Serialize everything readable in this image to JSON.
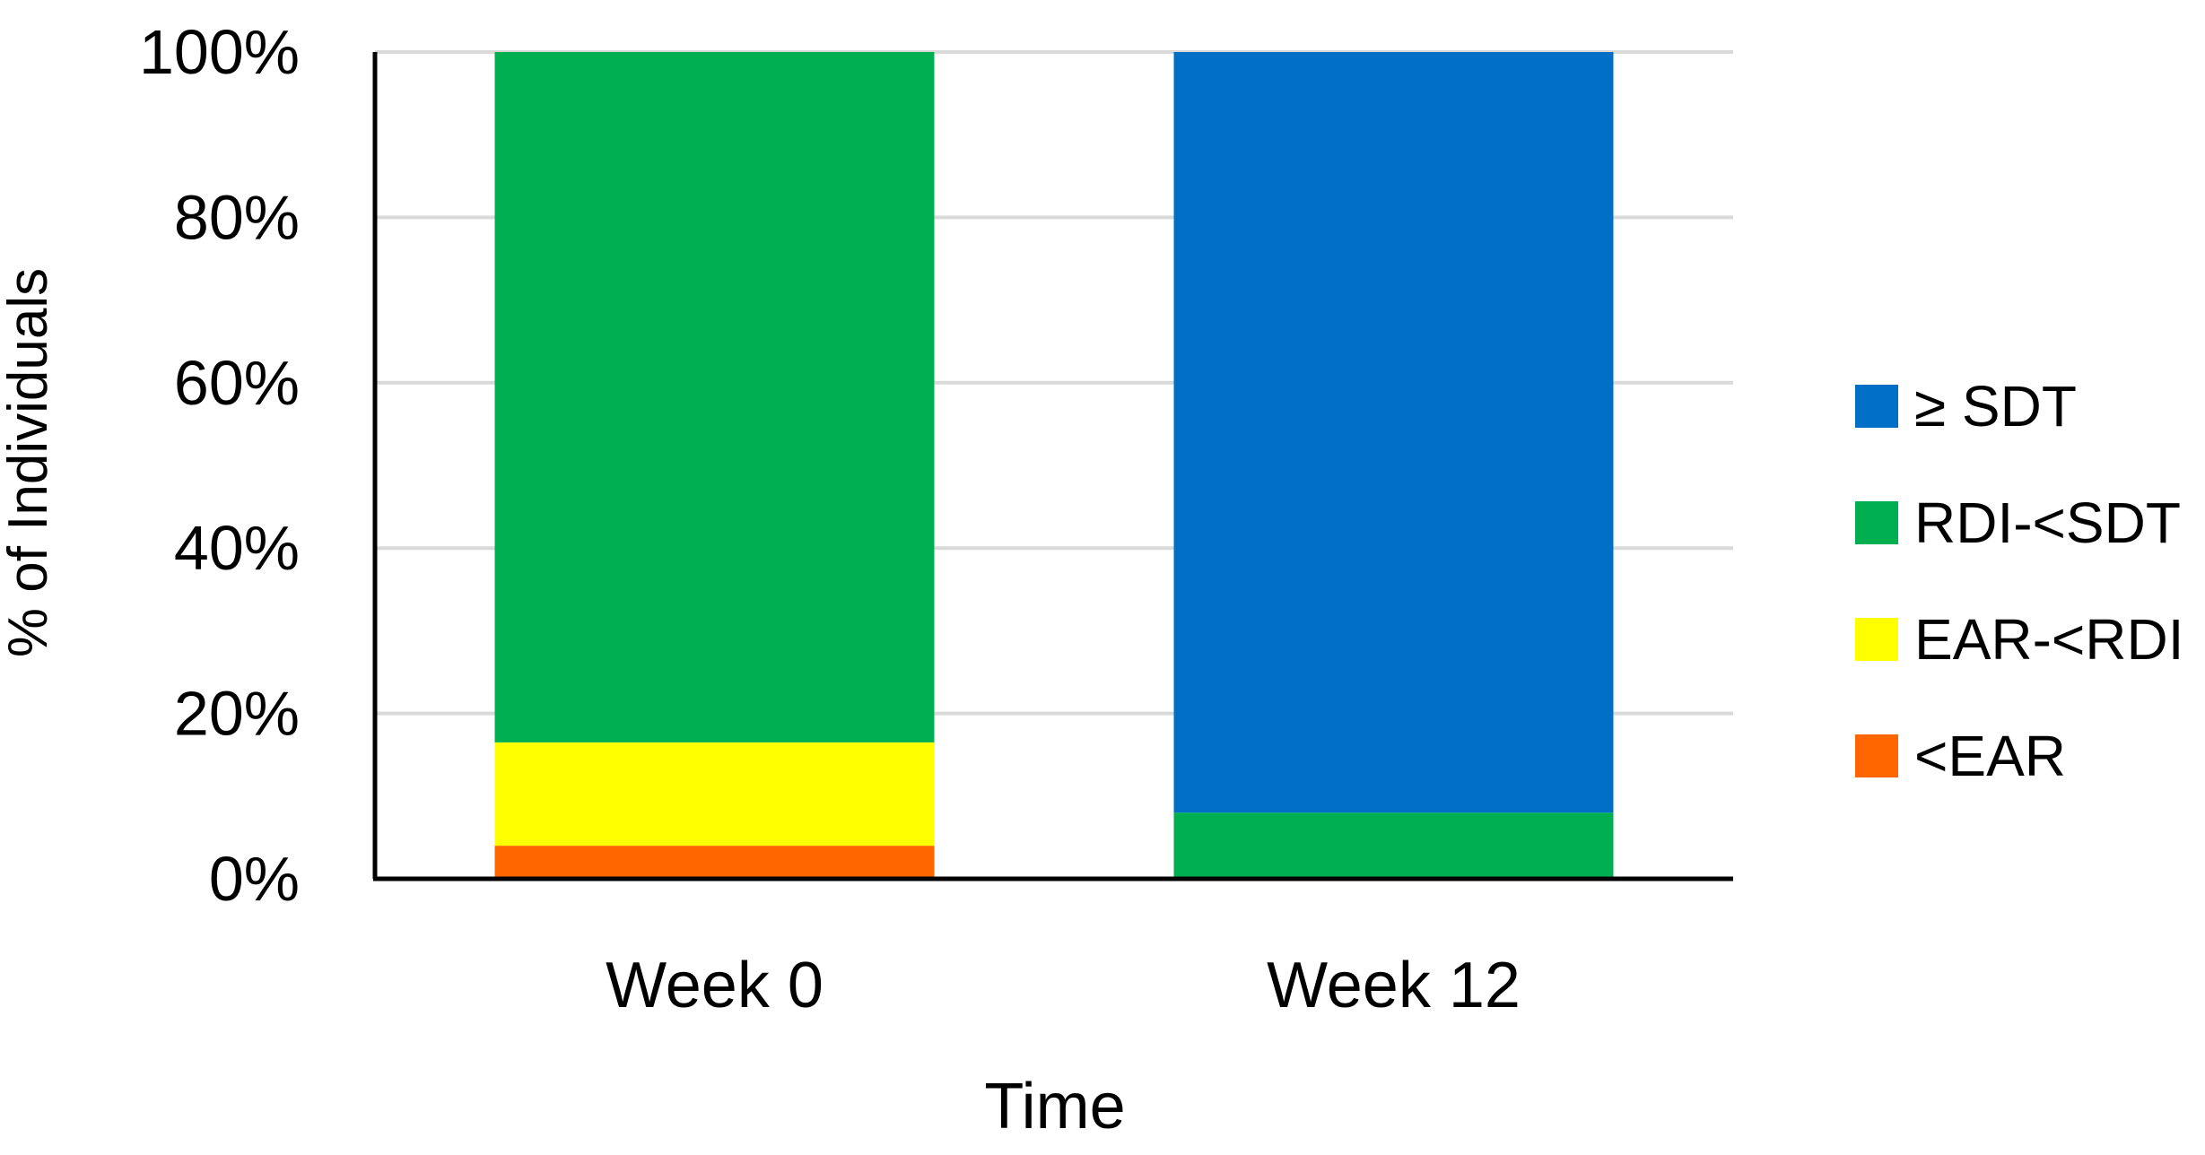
{
  "chart_data": {
    "type": "bar",
    "stacked": true,
    "title": "",
    "xlabel": "Time",
    "ylabel": "% of Individuals",
    "categories": [
      "Week 0",
      "Week 12"
    ],
    "ylim": [
      0,
      100
    ],
    "yticks": [
      0,
      20,
      40,
      60,
      80,
      100
    ],
    "ytick_labels": [
      "0%",
      "20%",
      "40%",
      "60%",
      "80%",
      "100%"
    ],
    "grid": true,
    "legend_position": "right",
    "series": [
      {
        "name": "<EAR",
        "color": "#FF6600",
        "values": [
          4,
          0
        ]
      },
      {
        "name": "EAR-<RDI",
        "color": "#FFFF00",
        "values": [
          12.5,
          0
        ]
      },
      {
        "name": "RDI-<SDT",
        "color": "#00B050",
        "values": [
          83.5,
          8
        ]
      },
      {
        "name": "≥ SDT",
        "color": "#0070C6",
        "values": [
          0,
          92
        ]
      }
    ]
  }
}
